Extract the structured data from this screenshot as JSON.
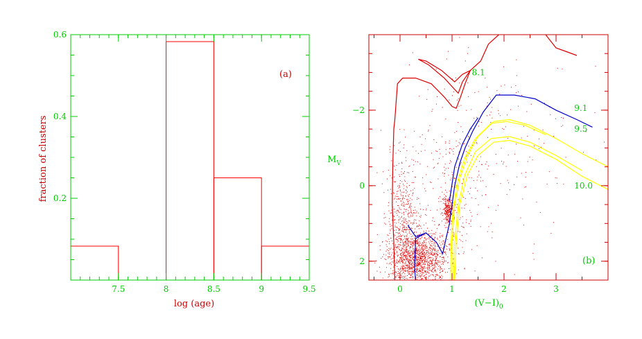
{
  "colors": {
    "axis": "#00cc00",
    "label": "#cc0000",
    "histogram": "#ff0000",
    "points": "#e00000",
    "iso_8_1": "#dd0000",
    "iso_9_1": "#0000cc",
    "iso_9_5": "#ffff00",
    "iso_10_0": "#ffff00"
  },
  "chart_data": [
    {
      "type": "bar",
      "panel_label": "(a)",
      "xlabel": "log (age)",
      "ylabel": "fraction of clusters",
      "xlim": [
        7.0,
        9.5
      ],
      "ylim": [
        0.0,
        0.6
      ],
      "xticks": [
        "7.5",
        "8",
        "8.5",
        "9",
        "9.5"
      ],
      "xtick_values": [
        7.5,
        8.0,
        8.5,
        9.0,
        9.5
      ],
      "yticks": [
        "0.2",
        "0.4",
        "0.6"
      ],
      "ytick_values": [
        0.2,
        0.4,
        0.6
      ],
      "bins": [
        {
          "start": 7.0,
          "end": 7.5,
          "value": 0.083
        },
        {
          "start": 7.5,
          "end": 8.0,
          "value": 0.0
        },
        {
          "start": 8.0,
          "end": 8.5,
          "value": 0.583
        },
        {
          "start": 8.5,
          "end": 9.0,
          "value": 0.25
        },
        {
          "start": 9.0,
          "end": 9.5,
          "value": 0.083
        }
      ]
    },
    {
      "type": "scatter",
      "panel_label": "(b)",
      "xlabel_main": "(V−I)",
      "xlabel_sub": "0",
      "ylabel_main": "M",
      "ylabel_sub": "V",
      "xlim": [
        -0.6,
        4.0
      ],
      "ylim": [
        2.5,
        -4.0
      ],
      "y_inverted": true,
      "xticks": [
        "0",
        "1",
        "2",
        "3"
      ],
      "xtick_values": [
        0,
        1,
        2,
        3
      ],
      "yticks": [
        "−2",
        "0",
        "2"
      ],
      "ytick_values": [
        -2,
        0,
        2
      ],
      "isochrones": [
        {
          "label": "8.1",
          "label_x": 1.38,
          "label_y": -3.0,
          "color_key": "iso_8_1",
          "points": [
            [
              -0.1,
              -1.75
            ],
            [
              -0.12,
              -1.5
            ],
            [
              -0.14,
              -0.5
            ],
            [
              -0.15,
              0.5
            ],
            [
              -0.12,
              1.5
            ],
            [
              -0.1,
              2.5
            ]
          ],
          "branch": [
            [
              -0.1,
              -1.75
            ],
            [
              -0.05,
              -2.7
            ],
            [
              0.05,
              -2.85
            ],
            [
              0.3,
              -2.85
            ],
            [
              0.6,
              -2.7
            ],
            [
              0.85,
              -2.35
            ],
            [
              1.0,
              -2.1
            ],
            [
              1.08,
              -2.05
            ],
            [
              1.15,
              -2.3
            ],
            [
              1.25,
              -2.7
            ],
            [
              1.35,
              -3.05
            ]
          ],
          "loop": [
            [
              0.35,
              -3.35
            ],
            [
              0.55,
              -3.2
            ],
            [
              0.85,
              -2.85
            ],
            [
              1.05,
              -2.55
            ],
            [
              1.12,
              -2.45
            ],
            [
              1.2,
              -2.75
            ],
            [
              1.35,
              -3.05
            ],
            [
              1.2,
              -2.95
            ],
            [
              1.05,
              -2.75
            ],
            [
              0.8,
              -3.05
            ],
            [
              0.5,
              -3.3
            ],
            [
              0.35,
              -3.35
            ]
          ],
          "upper": [
            [
              1.35,
              -3.05
            ],
            [
              1.55,
              -3.3
            ],
            [
              1.7,
              -3.75
            ],
            [
              1.9,
              -4.0
            ]
          ],
          "upper2": [
            [
              2.8,
              -4.0
            ],
            [
              3.0,
              -3.65
            ],
            [
              3.2,
              -3.55
            ],
            [
              3.4,
              -3.45
            ]
          ]
        },
        {
          "label": "9.1",
          "label_x": 3.35,
          "label_y": -2.05,
          "color_key": "iso_9_1",
          "points": [
            [
              0.3,
              2.5
            ],
            [
              0.28,
              2.2
            ],
            [
              0.3,
              1.4
            ],
            [
              0.5,
              1.25
            ],
            [
              0.7,
              1.5
            ],
            [
              0.82,
              1.8
            ],
            [
              0.95,
              1.0
            ],
            [
              1.05,
              0.0
            ],
            [
              1.15,
              -0.6
            ],
            [
              1.25,
              -1.0
            ],
            [
              1.4,
              -1.45
            ],
            [
              1.6,
              -1.95
            ],
            [
              1.85,
              -2.4
            ],
            [
              2.2,
              -2.4
            ],
            [
              2.6,
              -2.3
            ],
            [
              3.0,
              -2.0
            ],
            [
              3.4,
              -1.75
            ],
            [
              3.7,
              -1.55
            ]
          ],
          "branch": [
            [
              0.15,
              1.05
            ],
            [
              0.3,
              1.35
            ],
            [
              0.5,
              1.25
            ]
          ],
          "extra": [
            [
              0.95,
              0.4
            ],
            [
              1.05,
              -0.5
            ],
            [
              1.2,
              -1.1
            ],
            [
              1.35,
              -1.5
            ],
            [
              1.5,
              -1.8
            ]
          ]
        },
        {
          "label": "9.5",
          "label_x": 3.35,
          "label_y": -1.5,
          "color_key": "iso_9_5",
          "points": [
            [
              1.0,
              2.5
            ],
            [
              1.0,
              1.5
            ],
            [
              1.05,
              0.5
            ],
            [
              1.15,
              -0.2
            ],
            [
              1.3,
              -0.8
            ],
            [
              1.5,
              -1.3
            ],
            [
              1.8,
              -1.7
            ],
            [
              2.1,
              -1.75
            ],
            [
              2.5,
              -1.6
            ],
            [
              3.0,
              -1.25
            ],
            [
              3.5,
              -0.85
            ],
            [
              4.0,
              -0.5
            ]
          ],
          "inner": [
            [
              0.97,
              2.5
            ],
            [
              0.98,
              1.5
            ],
            [
              1.02,
              0.6
            ],
            [
              1.1,
              -0.1
            ],
            [
              1.25,
              -0.75
            ],
            [
              1.45,
              -1.25
            ],
            [
              1.75,
              -1.65
            ],
            [
              2.05,
              -1.7
            ],
            [
              2.4,
              -1.6
            ],
            [
              2.8,
              -1.35
            ]
          ]
        },
        {
          "label": "10.0",
          "label_x": 3.35,
          "label_y": 0.0,
          "color_key": "iso_10_0",
          "points": [
            [
              1.05,
              2.5
            ],
            [
              1.08,
              1.5
            ],
            [
              1.15,
              0.5
            ],
            [
              1.3,
              -0.3
            ],
            [
              1.5,
              -0.8
            ],
            [
              1.8,
              -1.15
            ],
            [
              2.1,
              -1.2
            ],
            [
              2.5,
              -1.05
            ],
            [
              3.0,
              -0.7
            ],
            [
              3.5,
              -0.25
            ],
            [
              4.0,
              0.1
            ]
          ],
          "inner": [
            [
              1.03,
              2.5
            ],
            [
              1.05,
              1.5
            ],
            [
              1.12,
              0.5
            ],
            [
              1.25,
              -0.3
            ],
            [
              1.45,
              -0.9
            ],
            [
              1.75,
              -1.25
            ],
            [
              2.1,
              -1.3
            ],
            [
              2.5,
              -1.15
            ],
            [
              3.0,
              -0.8
            ],
            [
              3.5,
              -0.4
            ]
          ]
        }
      ],
      "point_clouds": [
        {
          "cx": 0.35,
          "cy": 1.9,
          "sx": 0.28,
          "sy": 0.35,
          "n": 1300
        },
        {
          "cx": 0.05,
          "cy": 1.0,
          "sx": 0.15,
          "sy": 0.9,
          "n": 500
        },
        {
          "cx": 0.92,
          "cy": 0.65,
          "sx": 0.05,
          "sy": 0.18,
          "n": 260
        },
        {
          "cx": 0.95,
          "cy": 0.2,
          "sx": 0.3,
          "sy": 1.2,
          "n": 220
        },
        {
          "cx": 1.6,
          "cy": -0.8,
          "sx": 0.9,
          "sy": 1.4,
          "n": 260
        }
      ]
    }
  ]
}
